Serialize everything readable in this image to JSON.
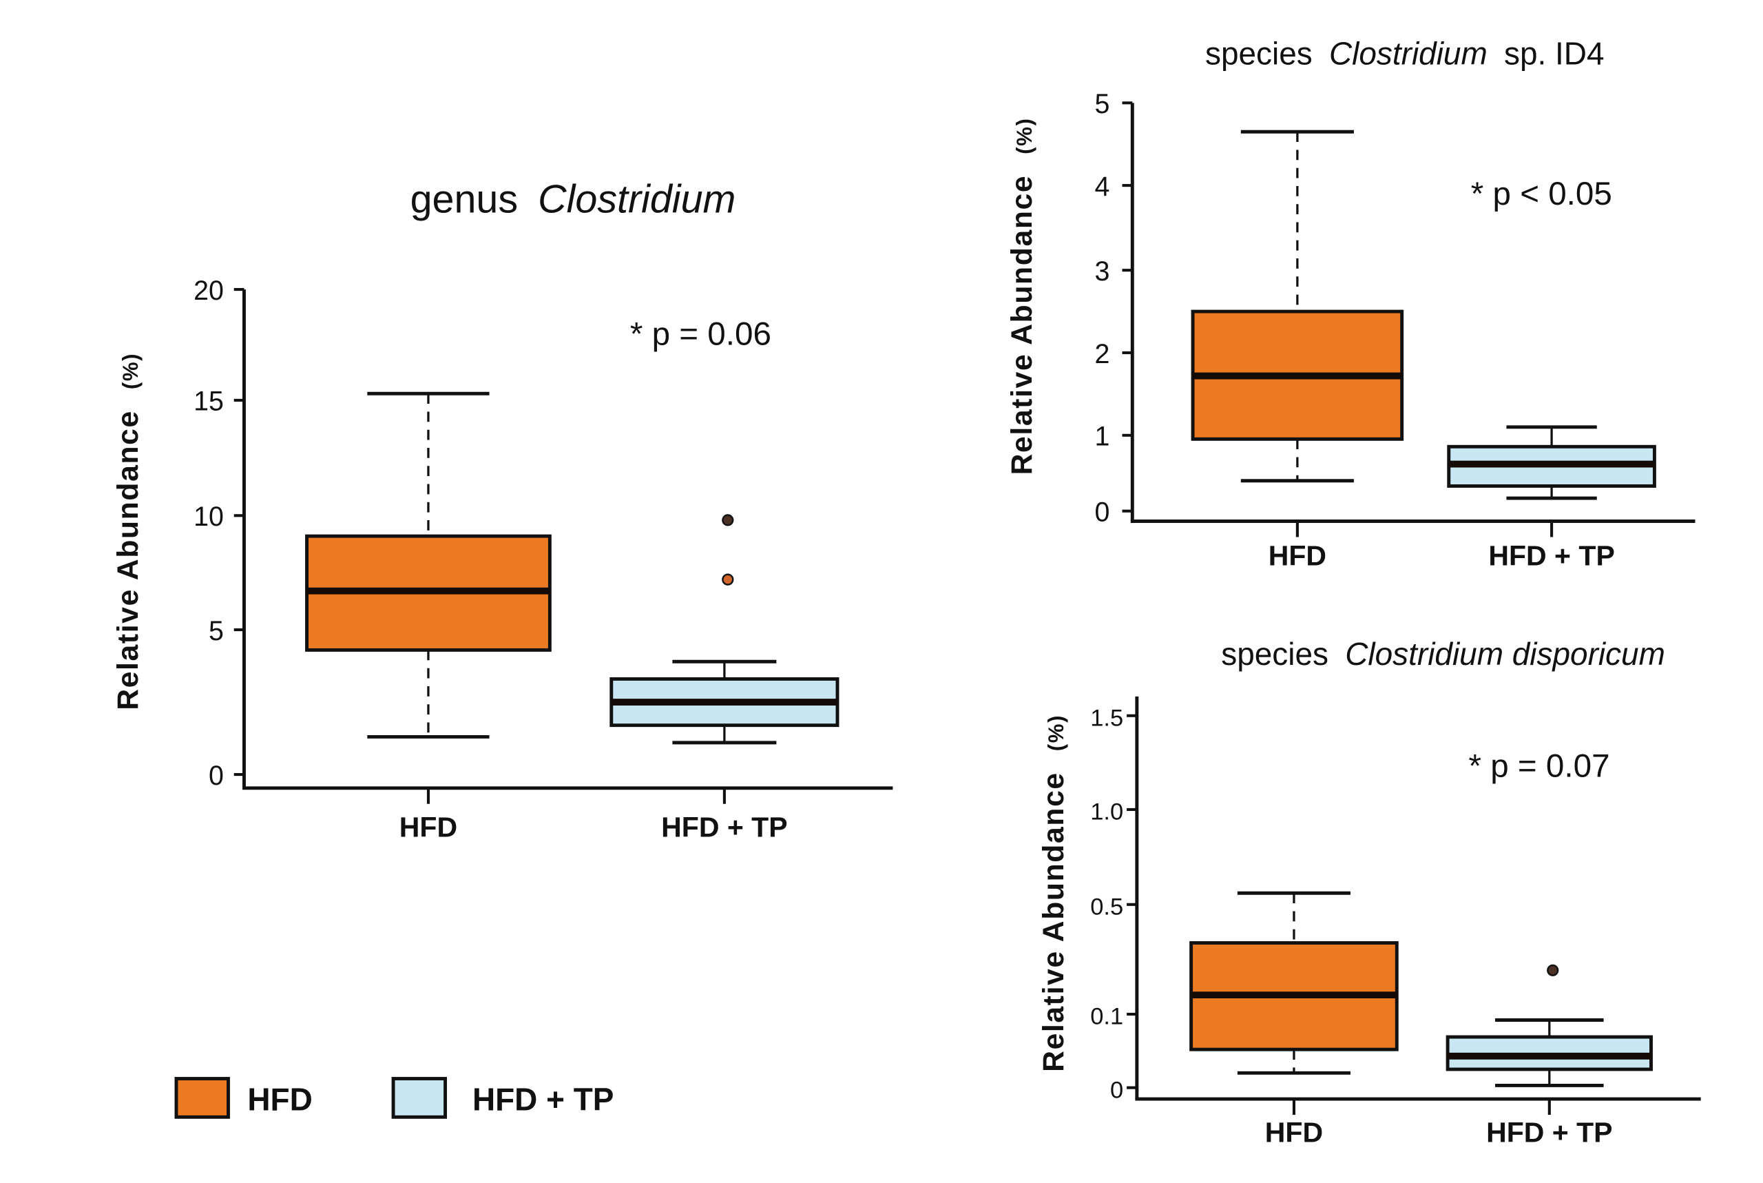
{
  "legend": {
    "items": [
      {
        "label": "HFD",
        "color": "#ec7a22"
      },
      {
        "label": "HFD + TP",
        "color": "#c9e7f3"
      }
    ]
  },
  "colors": {
    "HFD": "#ec7a22",
    "HFD + TP": "#c9e7f3",
    "stroke": "#111111",
    "outlier_dark": "#4a3025",
    "outlier_orange": "#d0652a"
  },
  "chart_data": [
    {
      "type": "box",
      "id": "genus",
      "title_prefix": "genus",
      "title_italic": "Clostridium",
      "title_suffix": "",
      "xlabel": "",
      "ylabel": "Relative Abundance",
      "ylabel_unit": "(%)",
      "annotation": "* p = 0.06",
      "categories": [
        "HFD",
        "HFD + TP"
      ],
      "yticks": [
        0,
        5,
        10,
        15,
        20
      ],
      "ytick_labels": [
        "0",
        "5",
        "10",
        "15",
        "20"
      ],
      "ylim": [
        0,
        20
      ],
      "axis_scale": "nonlinear (tick spacing 0-5 wider than other steps)",
      "grid": false,
      "series": [
        {
          "name": "HFD",
          "min": 1.3,
          "q1": 4.3,
          "median": 6.7,
          "q3": 9.1,
          "max": 15.3,
          "outliers": []
        },
        {
          "name": "HFD + TP",
          "min": 1.1,
          "q1": 1.7,
          "median": 2.5,
          "q3": 3.3,
          "max": 3.9,
          "outliers": [
            9.8,
            7.2
          ]
        }
      ]
    },
    {
      "type": "box",
      "id": "sp_id4",
      "title_prefix": "species",
      "title_italic": "Clostridium",
      "title_suffix": "sp. ID4",
      "xlabel": "",
      "ylabel": "Relative Abundance",
      "ylabel_unit": "(%)",
      "annotation": "* p < 0.05",
      "categories": [
        "HFD",
        "HFD + TP"
      ],
      "yticks": [
        0,
        1,
        2,
        3,
        4,
        5
      ],
      "ytick_labels": [
        "0",
        "1",
        "2",
        "3",
        "4",
        "5"
      ],
      "ylim": [
        0,
        5
      ],
      "axis_scale": "linear",
      "grid": false,
      "series": [
        {
          "name": "HFD",
          "min": 0.4,
          "q1": 0.95,
          "median": 1.72,
          "q3": 2.5,
          "max": 4.65,
          "outliers": []
        },
        {
          "name": "HFD + TP",
          "min": 0.17,
          "q1": 0.33,
          "median": 0.62,
          "q3": 0.85,
          "max": 1.1,
          "outliers": []
        }
      ]
    },
    {
      "type": "box",
      "id": "disporicum",
      "title_prefix": "species",
      "title_italic": "Clostridium disporicum",
      "title_suffix": "",
      "xlabel": "",
      "ylabel": "Relative Abundance",
      "ylabel_unit": "(%)",
      "annotation": "* p = 0.07",
      "categories": [
        "HFD",
        "HFD + TP"
      ],
      "yticks": [
        0,
        0.1,
        0.5,
        1.0,
        1.5
      ],
      "ytick_labels": [
        "0",
        "0.1",
        "0.5",
        "1.0",
        "1.5"
      ],
      "ylim": [
        0,
        1.6
      ],
      "axis_scale": "nonlinear (compressed upper range)",
      "grid": false,
      "series": [
        {
          "name": "HFD",
          "min": 0.02,
          "q1": 0.052,
          "median": 0.17,
          "q3": 0.36,
          "max": 0.56,
          "outliers": []
        },
        {
          "name": "HFD + TP",
          "min": 0.003,
          "q1": 0.025,
          "median": 0.043,
          "q3": 0.069,
          "max": 0.092,
          "outliers": [
            0.26
          ]
        }
      ]
    }
  ]
}
